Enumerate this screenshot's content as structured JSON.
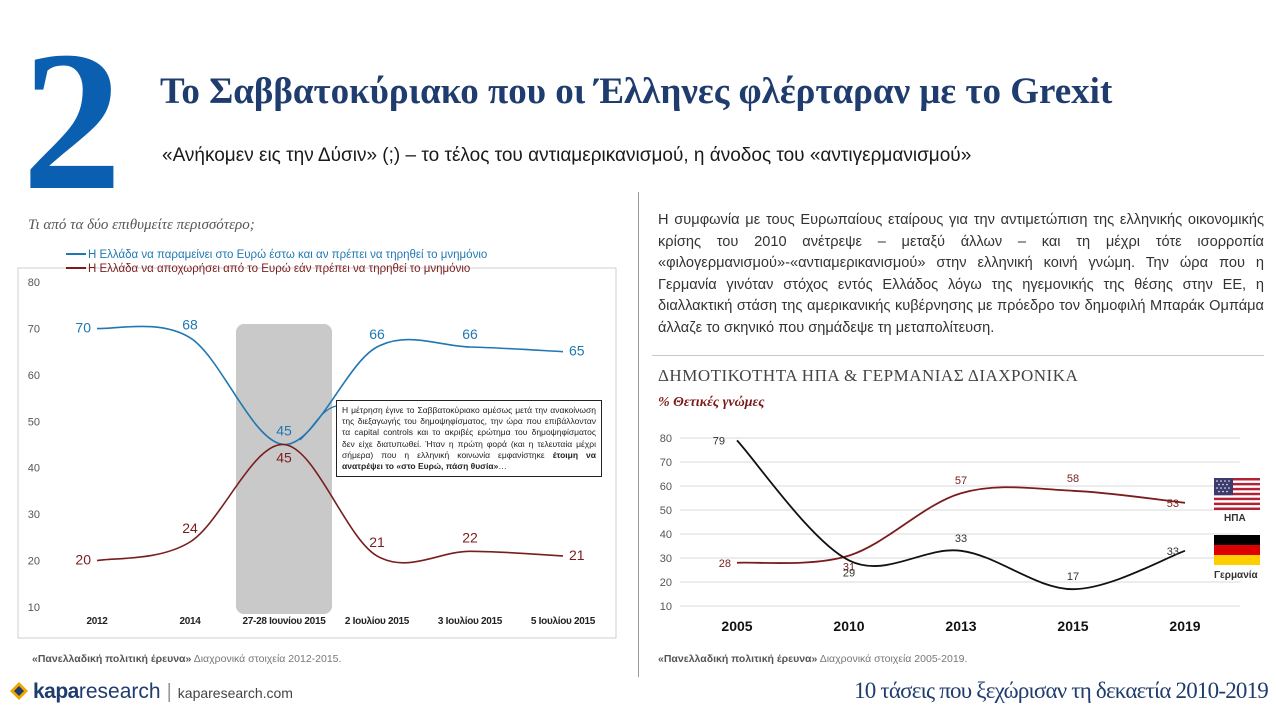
{
  "header": {
    "number": "2",
    "title": "Το Σαββατοκύριακο που οι Έλληνες φλέρταραν με το Grexit",
    "subtitle": "«Ανήκομεν εις την Δύσιν» (;) – το τέλος του αντιαμερικανισμού, η άνοδος του «αντιγερμανισμού»"
  },
  "left_panel": {
    "question": "Τι από τα δύο επιθυμείτε περισσότερο;",
    "annotation": {
      "text": "Η μέτρηση έγινε το Σαββατοκύριακο αμέσως μετά την ανακοίνωση της διεξαγωγής του δημοψηφίσματος, την ώρα που επιβάλλονταν τα capital controls και το ακριβές ερώτημα του δημοψηφίσματος δεν είχε διατυπωθεί. Ήταν η πρώτη φορά (και η τελευταία μέχρι σήμερα) που η ελληνική κοινωνία εμφανίστηκε ",
      "bold": "έτοιμη να ανατρέψει το «στο Ευρώ, πάση θυσία»",
      "tail": "…"
    },
    "source_bold": "«Πανελλαδική πολιτική έρευνα»",
    "source_rest": " Διαχρονικά στοιχεία 2012-2015."
  },
  "right_panel": {
    "paragraph": "Η συμφωνία με τους Ευρωπαίους εταίρους για την αντιμετώπιση της ελληνικής οικονομικής κρίσης του 2010 ανέτρεψε – μεταξύ άλλων – και τη μέχρι τότε ισορροπία «φιλογερμανισμού»-«αντιαμερικανισμού» στην ελληνική κοινή γνώμη. Την ώρα που η Γερμανία γινόταν στόχος εντός Ελλάδος λόγω της ηγεμονικής της θέσης στην ΕΕ, η διαλλακτική στάση της αμερικανικής κυβέρνησης με πρόεδρο τον δημοφιλή Μπαράκ Ομπάμα άλλαζε το σκηνικό που σημάδεψε τη μεταπολίτευση.",
    "title": "ΔΗΜΟΤΙΚΟΤΗΤΑ ΗΠΑ & ΓΕΡΜΑΝΙΑΣ ΔΙΑΧΡΟΝΙΚΑ",
    "subtitle": "% Θετικές γνώμες",
    "flag_usa_label": "ΗΠΑ",
    "flag_germany_label": "Γερμανία",
    "source_bold": "«Πανελλαδική πολιτική έρευνα»",
    "source_rest": " Διαχρονικά στοιχεία 2005-2019."
  },
  "footer": {
    "brand": "kapa",
    "brand_suffix": "research",
    "url": "kaparesearch.com",
    "series_title": "10 τάσεις που ξεχώρισαν τη δεκαετία 2010-2019"
  },
  "colors": {
    "blue": "#1f77b4",
    "darkred": "#7a1d1d",
    "black": "#111111",
    "title_blue": "#1f3c6e",
    "number_blue": "#0b5fb0"
  },
  "chart_data": [
    {
      "type": "line",
      "title": "",
      "categories": [
        "2012",
        "2014",
        "27-28 Ιουνίου 2015",
        "2 Ιουλίου 2015",
        "3 Ιουλίου 2015",
        "5 Ιουλίου 2015"
      ],
      "series": [
        {
          "name": "Η Ελλάδα να παραμείνει στο Ευρώ έστω και αν πρέπει να τηρηθεί το μνημόνιο",
          "color": "#1f77b4",
          "values": [
            70,
            68,
            45,
            66,
            66,
            65
          ]
        },
        {
          "name": "Η Ελλάδα να αποχωρήσει από το Ευρώ εάν πρέπει να τηρηθεί το μνημόνιο",
          "color": "#7a1d1d",
          "values": [
            20,
            24,
            45,
            21,
            22,
            21
          ]
        }
      ],
      "ylim": [
        10,
        80
      ],
      "yticks": [
        10,
        20,
        30,
        40,
        50,
        60,
        70,
        80
      ],
      "highlight_category": "27-28 Ιουνίου 2015",
      "legend": "top-left"
    },
    {
      "type": "line",
      "title": "ΔΗΜΟΤΙΚΟΤΗΤΑ ΗΠΑ & ΓΕΡΜΑΝΙΑΣ ΔΙΑΧΡΟΝΙΚΑ",
      "ylabel": "% Θετικές γνώμες",
      "categories": [
        "2005",
        "2010",
        "2013",
        "2015",
        "2019"
      ],
      "series": [
        {
          "name": "ΗΠΑ",
          "color": "#7a1d1d",
          "values": [
            28,
            31,
            57,
            58,
            53
          ]
        },
        {
          "name": "Γερμανία",
          "color": "#111111",
          "values": [
            79,
            29,
            33,
            17,
            33
          ]
        }
      ],
      "ylim": [
        10,
        80
      ],
      "yticks": [
        10,
        20,
        30,
        40,
        50,
        60,
        70,
        80
      ]
    }
  ]
}
